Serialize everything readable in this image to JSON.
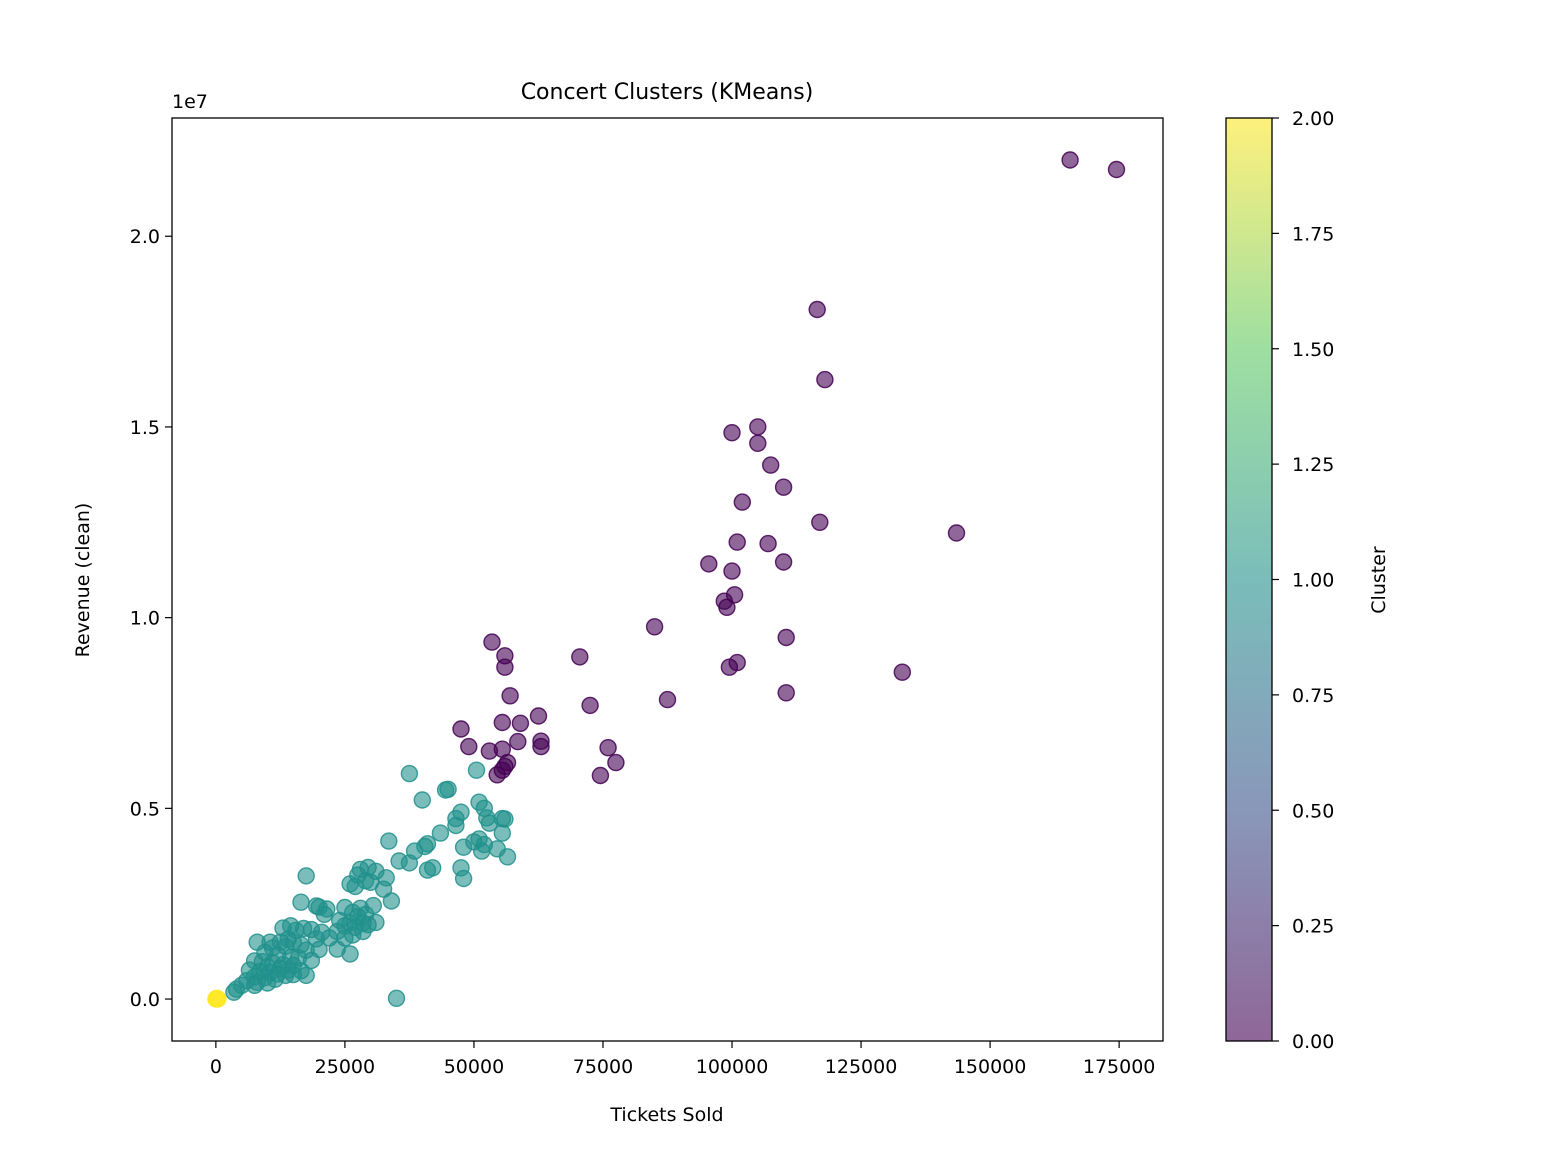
{
  "chart_data": {
    "type": "scatter",
    "title": "Concert Clusters (KMeans)",
    "xlabel": "Tickets Sold",
    "ylabel": "Revenue (clean)",
    "y_offset_label": "1e7",
    "xlim": [
      -8500,
      183500
    ],
    "ylim": [
      -1100000,
      23100000
    ],
    "x_ticks": [
      0,
      25000,
      50000,
      75000,
      100000,
      125000,
      150000,
      175000
    ],
    "x_tick_labels": [
      "0",
      "25000",
      "50000",
      "75000",
      "100000",
      "125000",
      "150000",
      "175000"
    ],
    "y_ticks": [
      0,
      5000000,
      10000000,
      15000000,
      20000000
    ],
    "y_tick_labels": [
      "0.0",
      "0.5",
      "1.0",
      "1.5",
      "2.0"
    ],
    "grid": false,
    "point_alpha": 0.6,
    "colormap": "viridis",
    "colormap_stops": [
      "#440154",
      "#3b528b",
      "#21918c",
      "#5ec962",
      "#fde725"
    ],
    "colorbar": {
      "label": "Cluster",
      "range": [
        0,
        2
      ],
      "ticks": [
        0,
        0.25,
        0.5,
        0.75,
        1.0,
        1.25,
        1.5,
        1.75,
        2.0
      ],
      "tick_labels": [
        "0.00",
        "0.25",
        "0.50",
        "0.75",
        "1.00",
        "1.25",
        "1.50",
        "1.75",
        "2.00"
      ]
    },
    "series": [
      {
        "cluster": 0,
        "points": [
          [
            165500,
            22000000
          ],
          [
            174500,
            21750000
          ],
          [
            116500,
            18080000
          ],
          [
            118000,
            16240000
          ],
          [
            105000,
            15000000
          ],
          [
            100000,
            14850000
          ],
          [
            105000,
            14570000
          ],
          [
            107500,
            14000000
          ],
          [
            110000,
            13420000
          ],
          [
            102000,
            13030000
          ],
          [
            117000,
            12500000
          ],
          [
            143500,
            12220000
          ],
          [
            101000,
            11980000
          ],
          [
            107000,
            11940000
          ],
          [
            95500,
            11410000
          ],
          [
            110000,
            11460000
          ],
          [
            100000,
            11220000
          ],
          [
            98500,
            10430000
          ],
          [
            99000,
            10270000
          ],
          [
            100500,
            10600000
          ],
          [
            85000,
            9760000
          ],
          [
            110500,
            9480000
          ],
          [
            53500,
            9360000
          ],
          [
            56000,
            9000000
          ],
          [
            70500,
            8970000
          ],
          [
            101000,
            8820000
          ],
          [
            99500,
            8700000
          ],
          [
            56000,
            8700000
          ],
          [
            133000,
            8570000
          ],
          [
            57000,
            7950000
          ],
          [
            87500,
            7850000
          ],
          [
            110500,
            8030000
          ],
          [
            72500,
            7700000
          ],
          [
            62500,
            7420000
          ],
          [
            59000,
            7230000
          ],
          [
            55500,
            7250000
          ],
          [
            47500,
            7080000
          ],
          [
            58500,
            6750000
          ],
          [
            63000,
            6760000
          ],
          [
            63000,
            6620000
          ],
          [
            49000,
            6620000
          ],
          [
            53000,
            6500000
          ],
          [
            55500,
            6550000
          ],
          [
            76000,
            6590000
          ],
          [
            77500,
            6200000
          ],
          [
            56500,
            6200000
          ],
          [
            55500,
            6000000
          ],
          [
            56000,
            6100000
          ],
          [
            54500,
            5880000
          ],
          [
            74500,
            5860000
          ]
        ]
      },
      {
        "cluster": 1,
        "points": [
          [
            37500,
            5910000
          ],
          [
            50500,
            6000000
          ],
          [
            45000,
            5500000
          ],
          [
            44500,
            5480000
          ],
          [
            40000,
            5220000
          ],
          [
            51000,
            5160000
          ],
          [
            52000,
            5000000
          ],
          [
            47500,
            4900000
          ],
          [
            52500,
            4750000
          ],
          [
            46500,
            4730000
          ],
          [
            53000,
            4610000
          ],
          [
            56000,
            4720000
          ],
          [
            55500,
            4730000
          ],
          [
            46500,
            4550000
          ],
          [
            43500,
            4350000
          ],
          [
            55500,
            4350000
          ],
          [
            51000,
            4200000
          ],
          [
            50000,
            4120000
          ],
          [
            52000,
            4050000
          ],
          [
            33500,
            4140000
          ],
          [
            41000,
            4070000
          ],
          [
            40500,
            4000000
          ],
          [
            48000,
            3980000
          ],
          [
            38500,
            3880000
          ],
          [
            51500,
            3880000
          ],
          [
            54500,
            3940000
          ],
          [
            56500,
            3730000
          ],
          [
            35500,
            3620000
          ],
          [
            37500,
            3570000
          ],
          [
            41000,
            3380000
          ],
          [
            42000,
            3440000
          ],
          [
            47500,
            3440000
          ],
          [
            48000,
            3160000
          ],
          [
            17500,
            3230000
          ],
          [
            29500,
            3450000
          ],
          [
            28000,
            3400000
          ],
          [
            31000,
            3350000
          ],
          [
            27500,
            3250000
          ],
          [
            33000,
            3180000
          ],
          [
            29000,
            3100000
          ],
          [
            26000,
            3020000
          ],
          [
            30000,
            3060000
          ],
          [
            27000,
            2950000
          ],
          [
            32500,
            2880000
          ],
          [
            16500,
            2540000
          ],
          [
            34000,
            2570000
          ],
          [
            19500,
            2440000
          ],
          [
            20000,
            2410000
          ],
          [
            21500,
            2360000
          ],
          [
            25000,
            2400000
          ],
          [
            28000,
            2380000
          ],
          [
            30500,
            2450000
          ],
          [
            21000,
            2220000
          ],
          [
            26500,
            2270000
          ],
          [
            29000,
            2220000
          ],
          [
            31000,
            2010000
          ],
          [
            27500,
            2160000
          ],
          [
            24000,
            2060000
          ],
          [
            26000,
            2000000
          ],
          [
            28500,
            1990000
          ],
          [
            25000,
            1920000
          ],
          [
            27000,
            1880000
          ],
          [
            29500,
            1950000
          ],
          [
            17000,
            1850000
          ],
          [
            14500,
            1920000
          ],
          [
            13000,
            1860000
          ],
          [
            15500,
            1800000
          ],
          [
            18500,
            1820000
          ],
          [
            20500,
            1750000
          ],
          [
            23500,
            1770000
          ],
          [
            28500,
            1770000
          ],
          [
            26500,
            1680000
          ],
          [
            25000,
            1600000
          ],
          [
            19500,
            1580000
          ],
          [
            22000,
            1600000
          ],
          [
            14000,
            1570000
          ],
          [
            15000,
            1490000
          ],
          [
            8000,
            1490000
          ],
          [
            10500,
            1490000
          ],
          [
            12500,
            1490000
          ],
          [
            16500,
            1420000
          ],
          [
            13500,
            1380000
          ],
          [
            11000,
            1340000
          ],
          [
            17500,
            1280000
          ],
          [
            20000,
            1300000
          ],
          [
            23500,
            1310000
          ],
          [
            26000,
            1180000
          ],
          [
            9500,
            1220000
          ],
          [
            12000,
            1150000
          ],
          [
            14500,
            1100000
          ],
          [
            16000,
            1080000
          ],
          [
            18500,
            1010000
          ],
          [
            7500,
            1000000
          ],
          [
            9000,
            980000
          ],
          [
            11000,
            950000
          ],
          [
            13000,
            900000
          ],
          [
            15000,
            880000
          ],
          [
            10000,
            840000
          ],
          [
            12500,
            800000
          ],
          [
            14000,
            760000
          ],
          [
            16500,
            740000
          ],
          [
            6500,
            760000
          ],
          [
            8500,
            720000
          ],
          [
            10500,
            700000
          ],
          [
            12000,
            660000
          ],
          [
            13500,
            620000
          ],
          [
            15000,
            640000
          ],
          [
            17500,
            620000
          ],
          [
            7500,
            580000
          ],
          [
            9500,
            560000
          ],
          [
            11500,
            520000
          ],
          [
            6000,
            480000
          ],
          [
            8000,
            440000
          ],
          [
            10000,
            420000
          ],
          [
            7500,
            360000
          ],
          [
            5000,
            360000
          ],
          [
            4000,
            260000
          ],
          [
            3500,
            180000
          ],
          [
            35000,
            20000
          ]
        ]
      },
      {
        "cluster": 2,
        "points": [
          [
            0,
            0
          ],
          [
            200,
            20000
          ],
          [
            400,
            0
          ],
          [
            100,
            10000
          ]
        ]
      }
    ]
  }
}
